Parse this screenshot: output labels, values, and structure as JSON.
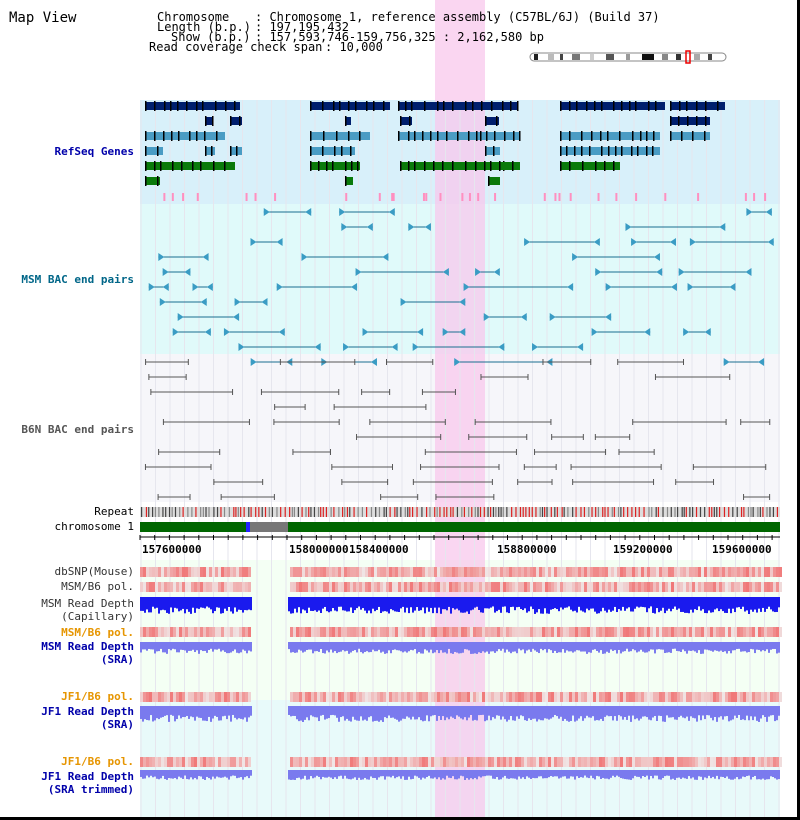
{
  "page_title": "Map View",
  "header": {
    "chromosome_label": "Chromosome",
    "chromosome_value": ": Chromosome 1, reference assembly (C57BL/6J) (Build 37)",
    "length_label": "Length (b.p.)",
    "length_value": ": 197,195,432",
    "show_label": "Show (b.p.)",
    "show_value": ": 157,593,746-159,756,325 : 2,162,580 bp",
    "coverage_label": "Read coverage check span",
    "coverage_value": ": 10,000"
  },
  "tracks": {
    "refseq": "RefSeq Genes",
    "msm_bac": "MSM BAC end pairs",
    "b6n_bac": "B6N BAC end pairs",
    "repeat": "Repeat",
    "chromosome": "chromosome 1",
    "dbsnp": "dbSNP(Mouse)",
    "msm_b6_pol": "MSM/B6 pol.",
    "msm_read_depth_cap_1": "MSM Read Depth",
    "msm_read_depth_cap_2": "(Capillary)",
    "msm_b6_pol_2": "MSM/B6 pol.",
    "msm_read_depth_sra_1": "MSM Read Depth",
    "msm_read_depth_sra_2": "(SRA)",
    "jf1_b6_pol": "JF1/B6 pol.",
    "jf1_read_depth_1": "JF1 Read Depth",
    "jf1_read_depth_2": "(SRA)",
    "jf1_b6_pol_2": "JF1/B6 pol.",
    "jf1_trimmed_1": "JF1 Read Depth",
    "jf1_trimmed_2": "(SRA trimmed)"
  },
  "axis_ticks": [
    "157600000",
    "158000000",
    "158400000",
    "158800000",
    "159200000",
    "159600000"
  ],
  "colors": {
    "highlight": "#f8c8ec",
    "refseq_bg": "#d8f0fa",
    "msm_bg": "#e0fafa",
    "b6n_bg": "#f4f4f8",
    "navy": "#001f6e",
    "teal": "#4a9cc4",
    "green": "#0a7a0a",
    "pink": "#ff90c0",
    "chrom_green": "#006600",
    "depth_blue": "#1a1aee",
    "light_blue": "#7a7aee",
    "label_blue": "#0000aa",
    "label_teal": "#006688",
    "label_orange": "#e69500",
    "label_gray": "#555555"
  }
}
